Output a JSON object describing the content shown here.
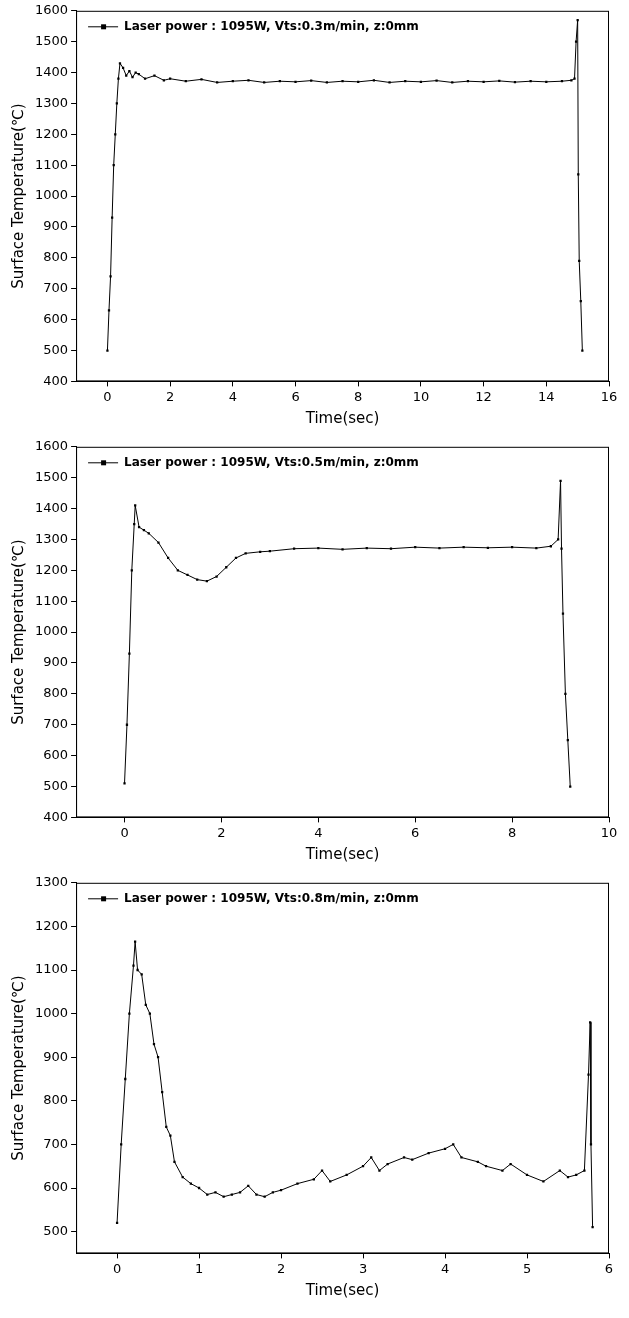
{
  "chart_data": [
    {
      "type": "line",
      "xlabel": "Time(sec)",
      "ylabel": "Surface Temperature(℃)",
      "x": [
        0,
        0.05,
        0.1,
        0.15,
        0.2,
        0.25,
        0.3,
        0.35,
        0.4,
        0.5,
        0.6,
        0.7,
        0.8,
        0.9,
        1.0,
        1.2,
        1.5,
        1.8,
        2.0,
        2.5,
        3.0,
        3.5,
        4.0,
        4.5,
        5.0,
        5.5,
        6.0,
        6.5,
        7.0,
        7.5,
        8.0,
        8.5,
        9.0,
        9.5,
        10.0,
        10.5,
        11.0,
        11.5,
        12.0,
        12.5,
        13.0,
        13.5,
        14.0,
        14.5,
        14.8,
        14.9,
        14.95,
        15.0,
        15.02,
        15.05,
        15.1,
        15.15
      ],
      "series": [
        {
          "name": "Laser power : 1095W, Vts:0.3m/min, z:0mm",
          "color": "#000000",
          "marker": "square",
          "values": [
            500,
            630,
            740,
            930,
            1100,
            1200,
            1300,
            1380,
            1430,
            1415,
            1390,
            1405,
            1385,
            1400,
            1395,
            1380,
            1390,
            1375,
            1380,
            1372,
            1378,
            1368,
            1372,
            1375,
            1368,
            1372,
            1370,
            1374,
            1368,
            1372,
            1370,
            1375,
            1368,
            1372,
            1370,
            1374,
            1368,
            1372,
            1370,
            1373,
            1369,
            1372,
            1370,
            1372,
            1375,
            1380,
            1500,
            1570,
            1070,
            790,
            660,
            500
          ]
        }
      ],
      "xlim": [
        -1,
        16
      ],
      "xticks": [
        0,
        2,
        4,
        6,
        8,
        10,
        12,
        14,
        16
      ],
      "ylim": [
        400,
        1600
      ],
      "yticks": [
        400,
        500,
        600,
        700,
        800,
        900,
        1000,
        1100,
        1200,
        1300,
        1400,
        1500,
        1600
      ],
      "legend": "top-left",
      "grid": false
    },
    {
      "type": "line",
      "xlabel": "Time(sec)",
      "ylabel": "Surface Temperature(℃)",
      "x": [
        0,
        0.05,
        0.1,
        0.15,
        0.2,
        0.22,
        0.3,
        0.4,
        0.5,
        0.7,
        0.9,
        1.1,
        1.3,
        1.5,
        1.7,
        1.9,
        2.1,
        2.3,
        2.5,
        2.8,
        3.0,
        3.5,
        4.0,
        4.5,
        5.0,
        5.5,
        6.0,
        6.5,
        7.0,
        7.5,
        8.0,
        8.5,
        8.8,
        8.95,
        9.0,
        9.02,
        9.05,
        9.1,
        9.15,
        9.2
      ],
      "series": [
        {
          "name": "Laser power : 1095W, Vts:0.5m/min, z:0mm",
          "color": "#000000",
          "marker": "square",
          "values": [
            510,
            700,
            930,
            1200,
            1350,
            1410,
            1340,
            1330,
            1320,
            1290,
            1240,
            1200,
            1185,
            1170,
            1165,
            1180,
            1210,
            1240,
            1255,
            1260,
            1262,
            1270,
            1272,
            1268,
            1272,
            1270,
            1275,
            1272,
            1275,
            1273,
            1275,
            1272,
            1278,
            1300,
            1490,
            1270,
            1060,
            800,
            650,
            500
          ]
        }
      ],
      "xlim": [
        -1,
        10
      ],
      "xticks": [
        0,
        2,
        4,
        6,
        8,
        10
      ],
      "ylim": [
        400,
        1600
      ],
      "yticks": [
        400,
        500,
        600,
        700,
        800,
        900,
        1000,
        1100,
        1200,
        1300,
        1400,
        1500,
        1600
      ],
      "legend": "top-left",
      "grid": false
    },
    {
      "type": "line",
      "xlabel": "Time(sec)",
      "ylabel": "Surface Temperature(℃)",
      "x": [
        0,
        0.05,
        0.1,
        0.15,
        0.2,
        0.22,
        0.25,
        0.3,
        0.35,
        0.4,
        0.45,
        0.5,
        0.55,
        0.6,
        0.65,
        0.7,
        0.8,
        0.9,
        1.0,
        1.1,
        1.2,
        1.3,
        1.4,
        1.5,
        1.6,
        1.7,
        1.8,
        1.9,
        2.0,
        2.2,
        2.4,
        2.5,
        2.6,
        2.8,
        3.0,
        3.1,
        3.2,
        3.3,
        3.5,
        3.6,
        3.8,
        4.0,
        4.1,
        4.2,
        4.4,
        4.5,
        4.7,
        4.8,
        5.0,
        5.2,
        5.4,
        5.5,
        5.6,
        5.7,
        5.75,
        5.77,
        5.78,
        5.8
      ],
      "series": [
        {
          "name": "Laser power : 1095W, Vts:0.8m/min, z:0mm",
          "color": "#000000",
          "marker": "square",
          "values": [
            520,
            700,
            850,
            1000,
            1110,
            1165,
            1100,
            1090,
            1020,
            1000,
            930,
            900,
            820,
            740,
            720,
            660,
            625,
            610,
            600,
            585,
            590,
            580,
            585,
            590,
            605,
            585,
            580,
            590,
            595,
            610,
            620,
            640,
            615,
            630,
            650,
            670,
            640,
            655,
            670,
            665,
            680,
            690,
            700,
            670,
            660,
            650,
            640,
            655,
            630,
            615,
            640,
            625,
            630,
            640,
            860,
            980,
            700,
            510
          ]
        }
      ],
      "xlim": [
        -0.5,
        6
      ],
      "xticks": [
        0,
        1,
        2,
        3,
        4,
        5,
        6
      ],
      "ylim": [
        450,
        1300
      ],
      "yticks": [
        500,
        600,
        700,
        800,
        900,
        1000,
        1100,
        1200,
        1300
      ],
      "legend": "top-left",
      "grid": false
    }
  ]
}
